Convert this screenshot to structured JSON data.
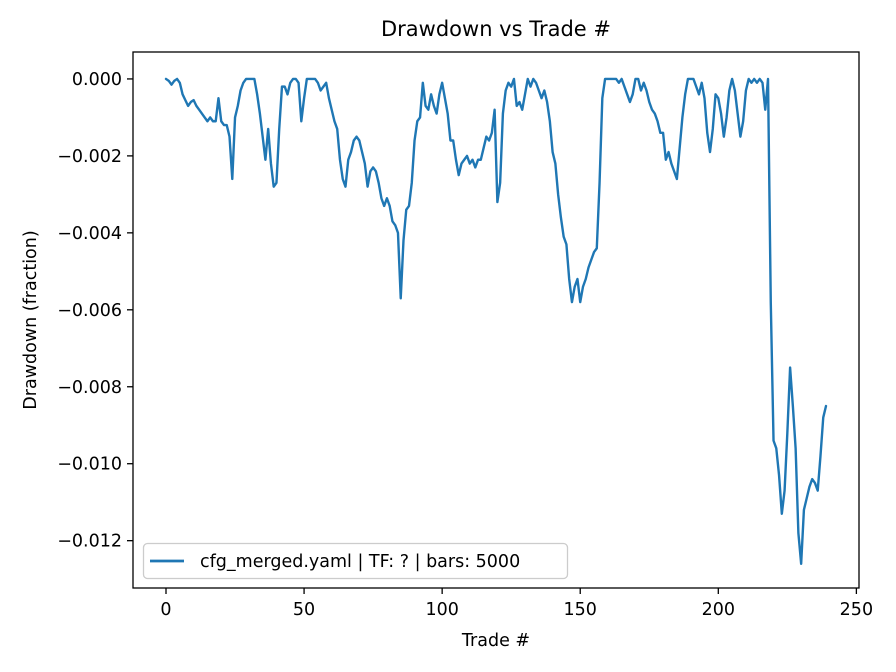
{
  "chart_data": {
    "type": "line",
    "title": "Drawdown vs Trade #",
    "xlabel": "Trade #",
    "ylabel": "Drawdown (fraction)",
    "grid": false,
    "background": "#ffffff",
    "spine_color": "#000000",
    "legend_location": "lower left",
    "xlim": [
      -11.95,
      250.95
    ],
    "ylim": [
      -0.01323,
      0.0007
    ],
    "xticks": [
      0,
      50,
      100,
      150,
      200,
      250
    ],
    "xtick_labels": [
      "0",
      "50",
      "100",
      "150",
      "200",
      "250"
    ],
    "yticks": [
      0.0,
      -0.002,
      -0.004,
      -0.006,
      -0.008,
      -0.01,
      -0.012
    ],
    "ytick_labels": [
      "0.000",
      "−0.002",
      "−0.004",
      "−0.006",
      "−0.008",
      "−0.010",
      "−0.012"
    ],
    "x_start": 0,
    "x_step": 1,
    "series": [
      {
        "name": "cfg_merged.yaml | TF: ? | bars: 5000",
        "color": "#1f77b4",
        "y": [
          0,
          -5e-05,
          -0.00015,
          -5e-05,
          0,
          -0.0001,
          -0.0004,
          -0.00055,
          -0.0007,
          -0.0006,
          -0.00055,
          -0.0007,
          -0.0008,
          -0.0009,
          -0.001,
          -0.0011,
          -0.001,
          -0.0011,
          -0.0011,
          -0.0005,
          -0.0011,
          -0.0012,
          -0.0012,
          -0.0015,
          -0.0026,
          -0.001,
          -0.0007,
          -0.0003,
          -0.0001,
          0,
          0,
          0,
          0,
          -0.0004,
          -0.0009,
          -0.0015,
          -0.0021,
          -0.0013,
          -0.0022,
          -0.0028,
          -0.0027,
          -0.0013,
          -0.0002,
          -0.0002,
          -0.0004,
          -0.0001,
          0,
          0,
          -0.0001,
          -0.0011,
          -0.0005,
          0,
          0,
          0,
          0,
          -0.0001,
          -0.0003,
          -0.0002,
          -0.0001,
          -0.0005,
          -0.0008,
          -0.0011,
          -0.0013,
          -0.0021,
          -0.0026,
          -0.0028,
          -0.0021,
          -0.0019,
          -0.0016,
          -0.0015,
          -0.0016,
          -0.0019,
          -0.0022,
          -0.0028,
          -0.0024,
          -0.0023,
          -0.0024,
          -0.0027,
          -0.0031,
          -0.0033,
          -0.0031,
          -0.0033,
          -0.0037,
          -0.0038,
          -0.004,
          -0.0057,
          -0.0042,
          -0.0034,
          -0.0033,
          -0.0027,
          -0.0016,
          -0.0011,
          -0.001,
          -0.0001,
          -0.0007,
          -0.0008,
          -0.0004,
          -0.0007,
          -0.0009,
          -0.0004,
          -0.0001,
          -0.0005,
          -0.0009,
          -0.0016,
          -0.0016,
          -0.0021,
          -0.0025,
          -0.0022,
          -0.0021,
          -0.002,
          -0.0022,
          -0.0021,
          -0.0023,
          -0.0021,
          -0.0021,
          -0.0018,
          -0.0015,
          -0.0016,
          -0.0014,
          -0.0008,
          -0.0032,
          -0.0027,
          -0.0009,
          -0.0003,
          -0.0001,
          -0.0002,
          0,
          -0.0007,
          -0.0006,
          -0.0008,
          -0.0004,
          0,
          -0.0002,
          0,
          -0.0001,
          -0.0003,
          -0.0005,
          -0.0003,
          -0.0006,
          -0.0011,
          -0.0019,
          -0.0022,
          -0.003,
          -0.0036,
          -0.0041,
          -0.0043,
          -0.0052,
          -0.0058,
          -0.0054,
          -0.0052,
          -0.0058,
          -0.0054,
          -0.0052,
          -0.0049,
          -0.0047,
          -0.0045,
          -0.0044,
          -0.0027,
          -0.0005,
          0,
          0,
          0,
          0,
          0,
          -0.0001,
          0,
          -0.0002,
          -0.0004,
          -0.0006,
          -0.0004,
          0,
          0,
          -0.0003,
          -0.0001,
          -0.0003,
          -0.0006,
          -0.0008,
          -0.0009,
          -0.0011,
          -0.0014,
          -0.0014,
          -0.0021,
          -0.0019,
          -0.0022,
          -0.0024,
          -0.0026,
          -0.0018,
          -0.001,
          -0.0004,
          0,
          0,
          0,
          -0.0002,
          -0.0004,
          -0.0001,
          -0.0005,
          -0.0014,
          -0.0019,
          -0.0013,
          -0.0004,
          -0.0005,
          -0.0009,
          -0.0015,
          -0.001,
          -0.0003,
          0,
          -0.0003,
          -0.0009,
          -0.0015,
          -0.0011,
          -0.0003,
          0,
          -0.0001,
          0,
          -0.0001,
          0,
          -0.0001,
          -0.0008,
          0,
          -0.0058,
          -0.0094,
          -0.0096,
          -0.0103,
          -0.0113,
          -0.0107,
          -0.0092,
          -0.0075,
          -0.0085,
          -0.0096,
          -0.0118,
          -0.0126,
          -0.0112,
          -0.0109,
          -0.0106,
          -0.0104,
          -0.0105,
          -0.0107,
          -0.0098,
          -0.0088,
          -0.0085
        ]
      }
    ]
  },
  "legend": {
    "label": "cfg_merged.yaml | TF: ? | bars: 5000"
  }
}
